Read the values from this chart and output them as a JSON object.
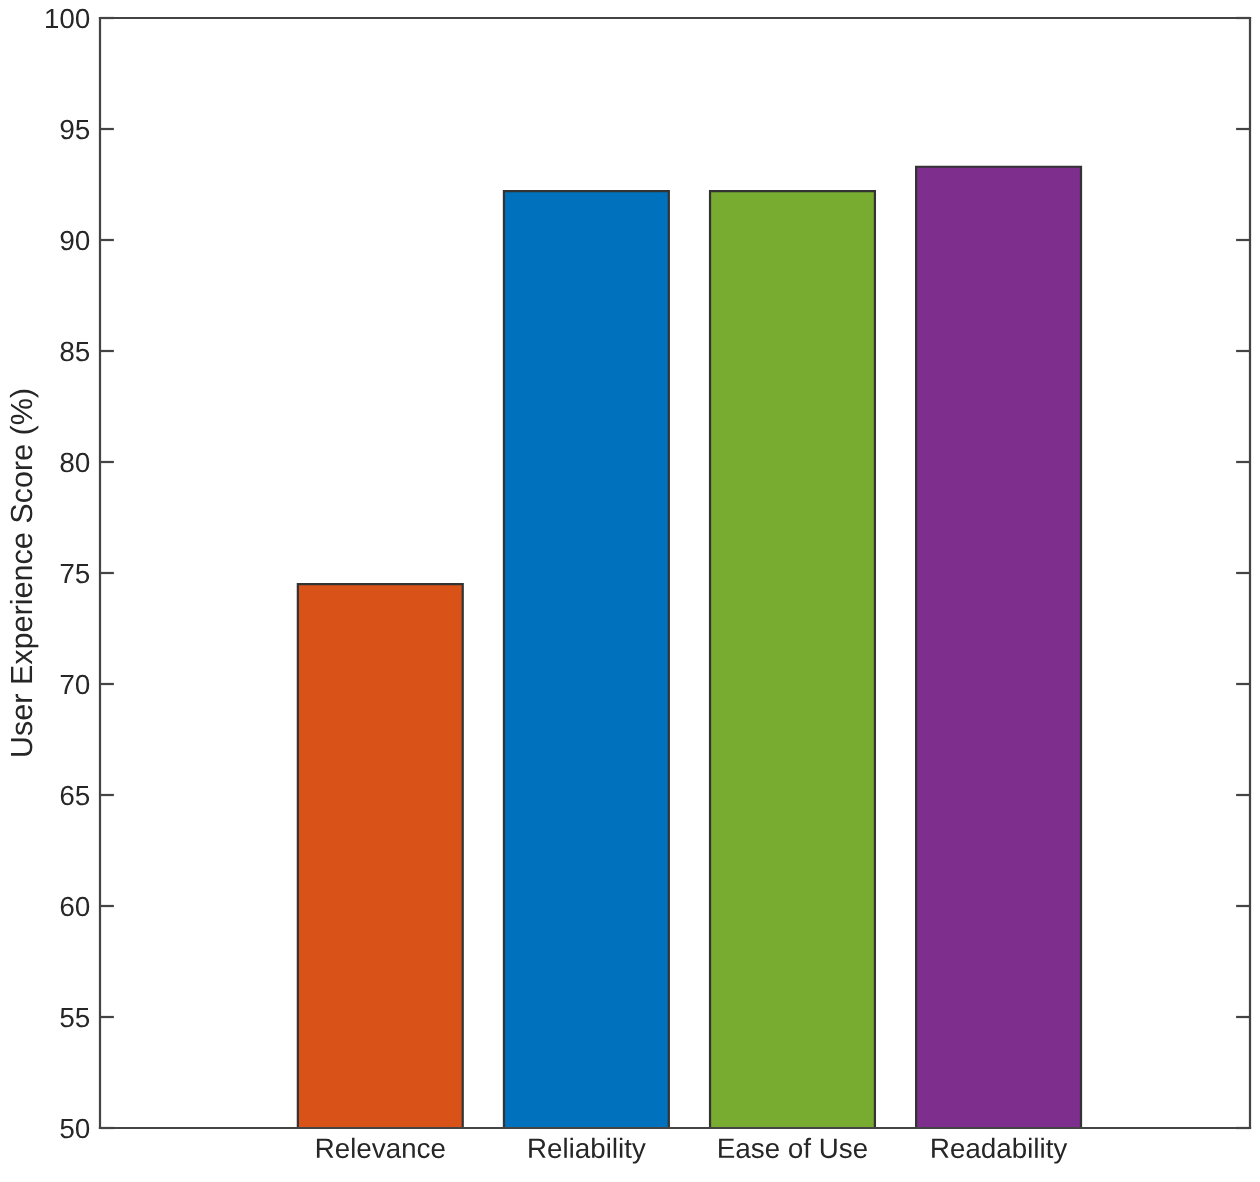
{
  "chart_data": {
    "type": "bar",
    "ylabel": "User Experience Score (%)",
    "categories": [
      "Relevance",
      "Reliability",
      "Ease of Use",
      "Readability"
    ],
    "values": [
      74.5,
      92.2,
      92.2,
      93.3
    ],
    "colors": [
      "#d95319",
      "#0072bd",
      "#77ac30",
      "#7e2f8e"
    ],
    "ylim": [
      50,
      100
    ],
    "yticks": [
      50,
      55,
      60,
      65,
      70,
      75,
      80,
      85,
      90,
      95,
      100
    ],
    "grid": false
  }
}
